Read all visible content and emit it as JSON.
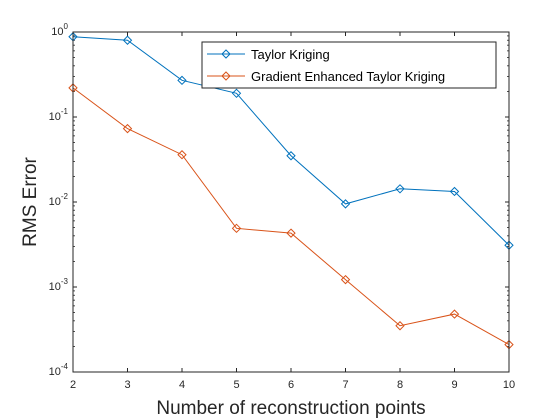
{
  "chart_data": {
    "type": "line",
    "title": "",
    "xlabel": "Number of reconstruction points",
    "ylabel": "RMS Error",
    "x": [
      2,
      3,
      4,
      5,
      6,
      7,
      8,
      9,
      10
    ],
    "xlim": [
      2,
      10
    ],
    "x_ticks": [
      2,
      3,
      4,
      5,
      6,
      7,
      8,
      9,
      10
    ],
    "y_scale": "log",
    "ylim": [
      0.0001,
      1
    ],
    "y_ticks": [
      {
        "value": 1,
        "base": "10",
        "exp": "0"
      },
      {
        "value": 0.1,
        "base": "10",
        "exp": "-1"
      },
      {
        "value": 0.01,
        "base": "10",
        "exp": "-2"
      },
      {
        "value": 0.001,
        "base": "10",
        "exp": "-3"
      },
      {
        "value": 0.0001,
        "base": "10",
        "exp": "-4"
      }
    ],
    "grid": false,
    "legend_position": "top-right",
    "series": [
      {
        "name": "Taylor Kriging",
        "color": "#0072BD",
        "marker": "diamond",
        "values": [
          0.88,
          0.8,
          0.27,
          0.19,
          0.035,
          0.0095,
          0.0143,
          0.0133,
          0.0031
        ]
      },
      {
        "name": "Gradient Enhanced Taylor Kriging",
        "color": "#D95319",
        "marker": "diamond",
        "values": [
          0.22,
          0.073,
          0.036,
          0.0049,
          0.0043,
          0.00122,
          0.00035,
          0.00048,
          0.00021
        ]
      }
    ]
  }
}
